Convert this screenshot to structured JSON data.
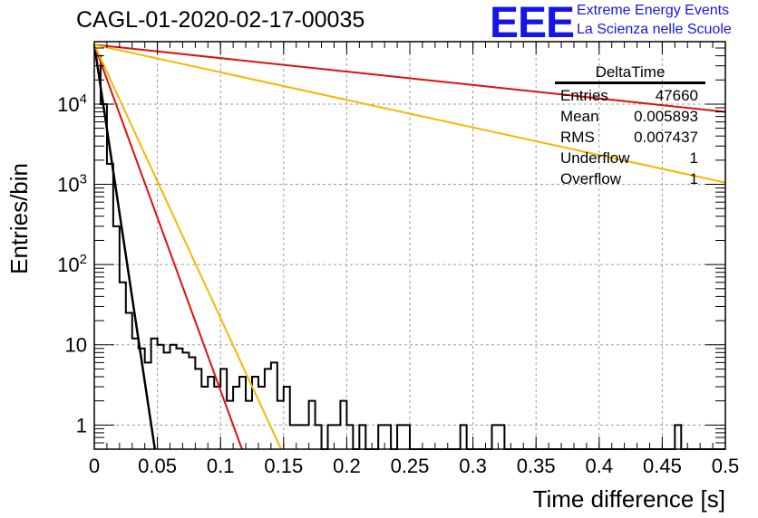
{
  "header": {
    "title": "CAGL-01-2020-02-17-00035",
    "logo_text": "EEE",
    "logo_line1": "Extreme Energy Events",
    "logo_line2": "La Scienza nelle Scuole",
    "logo_color": "#1515e8"
  },
  "stats_box": {
    "name": "DeltaTime",
    "rows": [
      {
        "label": "Entries",
        "value": "47660"
      },
      {
        "label": "Mean",
        "value": "0.005893"
      },
      {
        "label": "RMS",
        "value": "0.007437"
      },
      {
        "label": "Underflow",
        "value": "1"
      },
      {
        "label": "Overflow",
        "value": "1"
      }
    ]
  },
  "chart_data": {
    "type": "line",
    "xlabel": "Time difference [s]",
    "ylabel": "Entries/bin",
    "xlim": [
      0,
      0.5
    ],
    "ylim": [
      0.5,
      60000
    ],
    "yscale": "log",
    "grid": true,
    "x_ticks": [
      "0",
      "0.05",
      "0.1",
      "0.15",
      "0.2",
      "0.25",
      "0.3",
      "0.35",
      "0.4",
      "0.45",
      "0.5"
    ],
    "y_ticks": [
      {
        "value": 1,
        "label": "1"
      },
      {
        "value": 10,
        "label": "10"
      },
      {
        "value": 100,
        "label": "10^2"
      },
      {
        "value": 1000,
        "label": "10^3"
      },
      {
        "value": 10000,
        "label": "10^4"
      }
    ],
    "histogram": {
      "bin_width": 0.005,
      "color": "#000000",
      "values": [
        40000,
        10000,
        1800,
        300,
        60,
        25,
        12,
        9,
        6,
        12,
        10,
        8,
        10,
        9,
        8,
        7,
        5,
        3,
        4,
        3,
        5,
        2,
        3,
        4,
        2,
        4,
        3,
        5,
        6,
        2,
        3,
        1,
        1,
        1,
        2,
        1,
        0,
        1,
        1,
        2,
        1,
        0,
        0,
        0,
        0,
        1,
        1,
        0,
        1,
        0,
        0,
        0,
        0,
        0,
        0,
        0,
        0,
        0,
        0,
        0,
        0,
        0,
        0,
        0,
        0,
        0,
        0,
        0,
        0,
        0,
        0,
        0,
        0,
        0,
        0,
        0,
        0,
        0,
        0,
        0,
        0,
        0,
        0,
        0,
        0,
        0,
        0,
        0,
        0,
        0,
        0,
        0,
        0,
        0,
        0,
        0,
        0,
        0,
        0,
        0
      ],
      "extra_bins": [
        [
          0.185,
          1
        ],
        [
          0.21,
          1
        ],
        [
          0.245,
          1
        ],
        [
          0.29,
          1
        ],
        [
          0.315,
          1
        ],
        [
          0.32,
          1
        ],
        [
          0.46,
          1
        ]
      ]
    },
    "fit_lines": [
      {
        "color": "#000000",
        "x": [
          0,
          0.048
        ],
        "y": [
          55000,
          0.5
        ]
      },
      {
        "color": "#dd1010",
        "x": [
          0,
          0.117
        ],
        "y": [
          55000,
          0.5
        ]
      },
      {
        "color": "#f5b800",
        "x": [
          0,
          0.148
        ],
        "y": [
          55000,
          0.5
        ]
      },
      {
        "color": "#dd1010",
        "x": [
          0,
          0.5
        ],
        "y": [
          55000,
          8000
        ]
      },
      {
        "color": "#f5b800",
        "x": [
          0,
          0.5
        ],
        "y": [
          55000,
          1050
        ]
      }
    ]
  }
}
